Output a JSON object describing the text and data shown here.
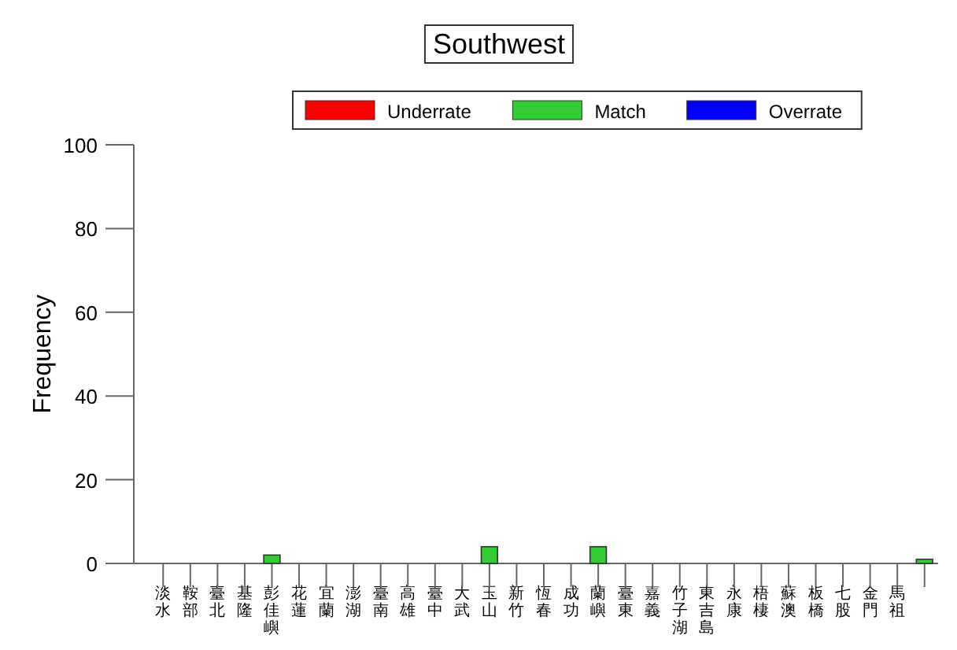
{
  "chart_data": {
    "type": "bar",
    "title": "Southwest",
    "ylabel": "Frequency",
    "stacked": true,
    "legend": "top",
    "grid": false,
    "categories": [
      "淡水",
      "鞍部",
      "臺北",
      "基隆",
      "彭佳嶼",
      "花蓮",
      "宜蘭",
      "澎湖",
      "臺南",
      "高雄",
      "臺中",
      "大武",
      "玉山",
      "新竹",
      "恆春",
      "成功",
      "蘭嶼",
      "臺東",
      "嘉義",
      "竹子湖",
      "東吉島",
      "永康",
      "梧棲",
      "蘇澳",
      "板橋",
      "七股",
      "金門",
      "馬祖",
      null
    ],
    "series": [
      {
        "name": "Underrate",
        "color": "#ff0000",
        "values": [
          0,
          0,
          0,
          0,
          0,
          0,
          0,
          0,
          0,
          0,
          0,
          0,
          0,
          0,
          0,
          0,
          0,
          0,
          0,
          0,
          0,
          0,
          0,
          0,
          0,
          0,
          0,
          0,
          0
        ]
      },
      {
        "name": "Match",
        "color": "#33cc33",
        "values": [
          0,
          0,
          0,
          0,
          2,
          0,
          0,
          0,
          0,
          0,
          0,
          0,
          4,
          0,
          0,
          0,
          4,
          0,
          0,
          0,
          0,
          0,
          0,
          0,
          0,
          0,
          0,
          0,
          1
        ]
      },
      {
        "name": "Overrate",
        "color": "#0000ff",
        "values": [
          0,
          0,
          0,
          0,
          0,
          0,
          0,
          0,
          0,
          0,
          0,
          0,
          0,
          0,
          0,
          0,
          0,
          0,
          0,
          0,
          0,
          0,
          0,
          0,
          0,
          0,
          0,
          0,
          0
        ]
      }
    ],
    "ylim": [
      0,
      100
    ],
    "yticks": [
      0,
      20,
      40,
      60,
      80,
      100
    ]
  }
}
